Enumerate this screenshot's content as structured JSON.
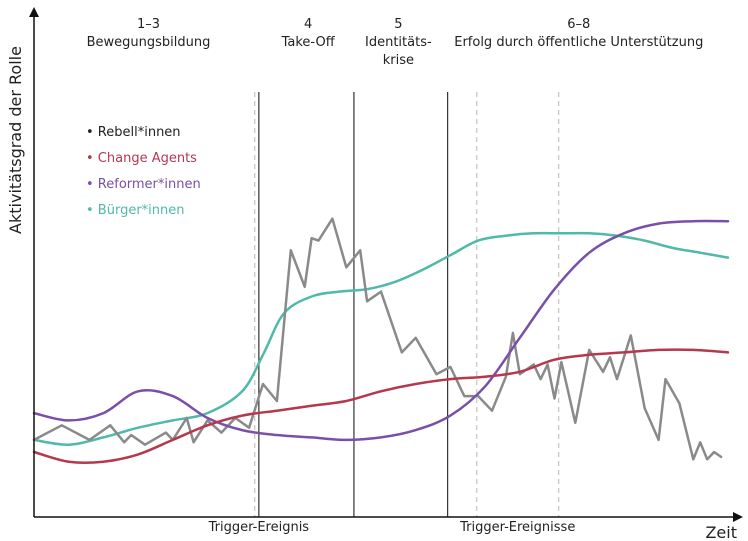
{
  "chart_data": {
    "type": "line",
    "ylabel": "Aktivitätsgrad der Rolle",
    "xlabel": "Zeit",
    "xlim": [
      0,
      100
    ],
    "ylim": [
      0,
      100
    ],
    "grid": false,
    "legend_position": "top-left",
    "phases": [
      {
        "lines": [
          "1–3",
          "Bewegungsbildung"
        ],
        "x": 16.5
      },
      {
        "lines": [
          "4",
          "Take-Off"
        ],
        "x": 39.5
      },
      {
        "lines": [
          "5",
          "Identitäts-",
          "krise"
        ],
        "x": 52.5
      },
      {
        "lines": [
          "6–8",
          "Erfolg durch öffentliche Unterstützung"
        ],
        "x": 78.5
      }
    ],
    "phase_boundaries": [
      32.4,
      46.1,
      59.6
    ],
    "trigger_lines": [
      31.8,
      63.8,
      75.6
    ],
    "trigger_labels": [
      {
        "text": "Trigger-Ereignis",
        "x": 32.4
      },
      {
        "text": "Trigger-Ereignisse",
        "x": 69.7
      }
    ],
    "series": [
      {
        "name": "Bürger*innen",
        "color": "#4fb9aa",
        "x": [
          0,
          5,
          10,
          15,
          20,
          25,
          30,
          33,
          36,
          40,
          44,
          48,
          52,
          56,
          60,
          64,
          68,
          72,
          76,
          80,
          84,
          88,
          92,
          96,
          100
        ],
        "values": [
          5,
          3,
          6,
          10,
          13,
          16,
          25,
          40,
          57,
          64,
          66,
          67,
          70,
          75,
          81,
          87,
          89,
          90,
          90,
          90,
          89,
          87,
          84,
          82,
          80
        ]
      },
      {
        "name": "Rebell*innen",
        "color": "#8a8a8a",
        "x": [
          0,
          4,
          8,
          11,
          13,
          14,
          16,
          19,
          20,
          22,
          23,
          25,
          27,
          29,
          31,
          33,
          35,
          37,
          39,
          40,
          41,
          43,
          45,
          47,
          48,
          50,
          53,
          55,
          58,
          60,
          62,
          64,
          66,
          68,
          69,
          70,
          72,
          73,
          74,
          75,
          76,
          78,
          80,
          82,
          83,
          84,
          86,
          88,
          90,
          91,
          93,
          95,
          96,
          97,
          98,
          99
        ],
        "values": [
          5,
          11,
          5,
          11,
          4,
          7,
          3,
          8,
          5,
          14,
          4,
          13,
          8,
          14,
          10,
          28,
          21,
          83,
          68,
          88,
          87,
          96,
          76,
          83,
          62,
          66,
          41,
          47,
          32,
          35,
          23,
          23,
          17,
          31,
          49,
          32,
          36,
          30,
          36,
          22,
          37,
          12,
          42,
          33,
          39,
          30,
          48,
          18,
          5,
          30,
          20,
          -3,
          4,
          -3,
          0,
          -2
        ]
      },
      {
        "name": "Reformer*innen",
        "color": "#7a4fa8",
        "x": [
          0,
          5,
          10,
          15,
          20,
          25,
          30,
          35,
          40,
          45,
          50,
          55,
          60,
          65,
          70,
          75,
          80,
          85,
          90,
          95,
          100
        ],
        "values": [
          16,
          13,
          16,
          25,
          23,
          14,
          9,
          7,
          6,
          5,
          6,
          9,
          15,
          27,
          47,
          67,
          82,
          90,
          94,
          95,
          95
        ]
      },
      {
        "name": "Change Agents",
        "color": "#b5384e",
        "x": [
          0,
          5,
          10,
          15,
          20,
          25,
          30,
          35,
          40,
          45,
          50,
          55,
          60,
          65,
          70,
          75,
          80,
          85,
          90,
          95,
          100
        ],
        "values": [
          0,
          -4,
          -4,
          -1,
          5,
          11,
          15,
          17,
          19,
          21,
          25,
          28,
          30,
          31,
          33,
          38,
          40,
          41,
          42,
          42,
          41
        ]
      }
    ]
  }
}
